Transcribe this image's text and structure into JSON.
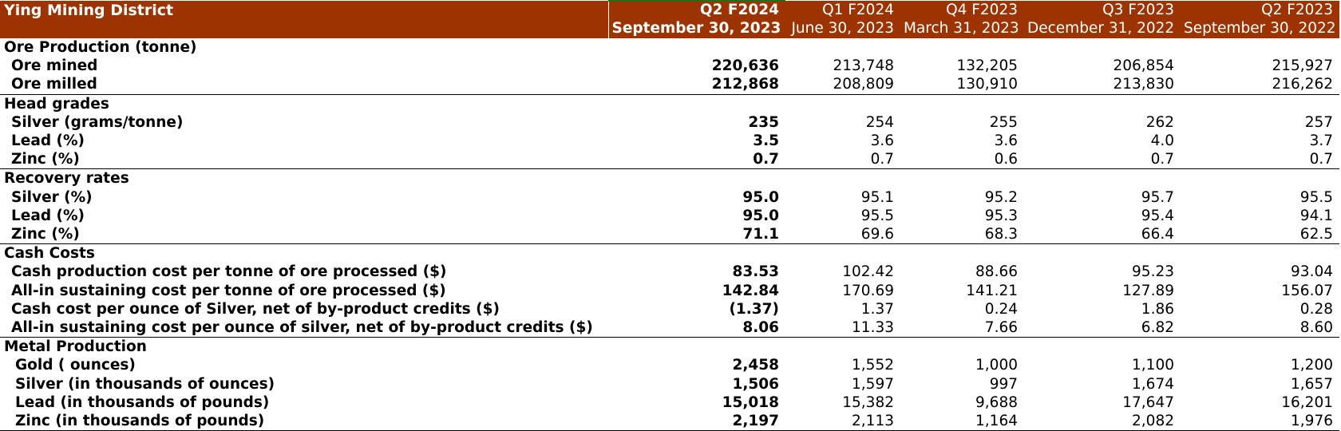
{
  "header": {
    "title": "Ying Mining District",
    "periods": [
      "Q2 F2024",
      "Q1 F2024",
      "Q4 F2023",
      "Q3 F2023",
      "Q2 F2023"
    ],
    "dates": [
      "September 30, 2023",
      "June 30, 2023",
      "March 31, 2023",
      "December 31, 2022",
      "September 30, 2022"
    ]
  },
  "sections": [
    {
      "title": "Ore Production (tonne)",
      "rows": [
        {
          "label": "Ore mined",
          "values": [
            "220,636",
            "213,748",
            "132,205",
            "206,854",
            "215,927"
          ]
        },
        {
          "label": "Ore milled",
          "values": [
            "212,868",
            "208,809",
            "130,910",
            "213,830",
            "216,262"
          ]
        }
      ]
    },
    {
      "title": "Head grades",
      "rows": [
        {
          "label": "Silver (grams/tonne)",
          "values": [
            "235",
            "254",
            "255",
            "262",
            "257"
          ]
        },
        {
          "label": "Lead (%)",
          "values": [
            "3.5",
            "3.6",
            "3.6",
            "4.0",
            "3.7"
          ]
        },
        {
          "label": "Zinc (%)",
          "values": [
            "0.7",
            "0.7",
            "0.6",
            "0.7",
            "0.7"
          ]
        }
      ]
    },
    {
      "title": "Recovery rates",
      "rows": [
        {
          "label": "Silver (%)",
          "values": [
            "95.0",
            "95.1",
            "95.2",
            "95.7",
            "95.5"
          ]
        },
        {
          "label": "Lead (%)",
          "values": [
            "95.0",
            "95.5",
            "95.3",
            "95.4",
            "94.1"
          ]
        },
        {
          "label": "Zinc (%)",
          "values": [
            "71.1",
            "69.6",
            "68.3",
            "66.4",
            "62.5"
          ]
        }
      ]
    },
    {
      "title": "Cash Costs",
      "rows": [
        {
          "label": "Cash production cost per tonne of ore processed ($)",
          "values": [
            "83.53",
            "102.42",
            "88.66",
            "95.23",
            "93.04"
          ]
        },
        {
          "label": "All-in sustaining cost per tonne of ore processed ($)",
          "values": [
            "142.84",
            "170.69",
            "141.21",
            "127.89",
            "156.07"
          ]
        },
        {
          "label": "Cash cost per ounce of Silver, net of by-product credits ($)",
          "values": [
            "(1.37)",
            "1.37",
            "0.24",
            "1.86",
            "0.28"
          ]
        },
        {
          "label": "All-in sustaining cost per ounce of silver, net of by-product credits ($)",
          "values": [
            "8.06",
            "11.33",
            "7.66",
            "6.82",
            "8.60"
          ]
        }
      ]
    },
    {
      "title": "Metal Production",
      "metal": true,
      "rows": [
        {
          "label": "Gold ( ounces)",
          "values": [
            "2,458",
            "1,552",
            "1,000",
            "1,100",
            "1,200"
          ]
        },
        {
          "label": "Silver (in thousands of ounces)",
          "values": [
            "1,506",
            "1,597",
            "997",
            "1,674",
            "1,657"
          ]
        },
        {
          "label": "Lead (in thousands of pounds)",
          "values": [
            "15,018",
            "15,382",
            "9,688",
            "17,647",
            "16,201"
          ]
        },
        {
          "label": "Zinc (in thousands of pounds)",
          "values": [
            "2,197",
            "2,113",
            "1,164",
            "2,082",
            "1,976"
          ]
        }
      ]
    }
  ],
  "colors": {
    "header_bg": "#9c3300",
    "header_text": "#ffffff",
    "accent_line": "#2a6a18"
  }
}
